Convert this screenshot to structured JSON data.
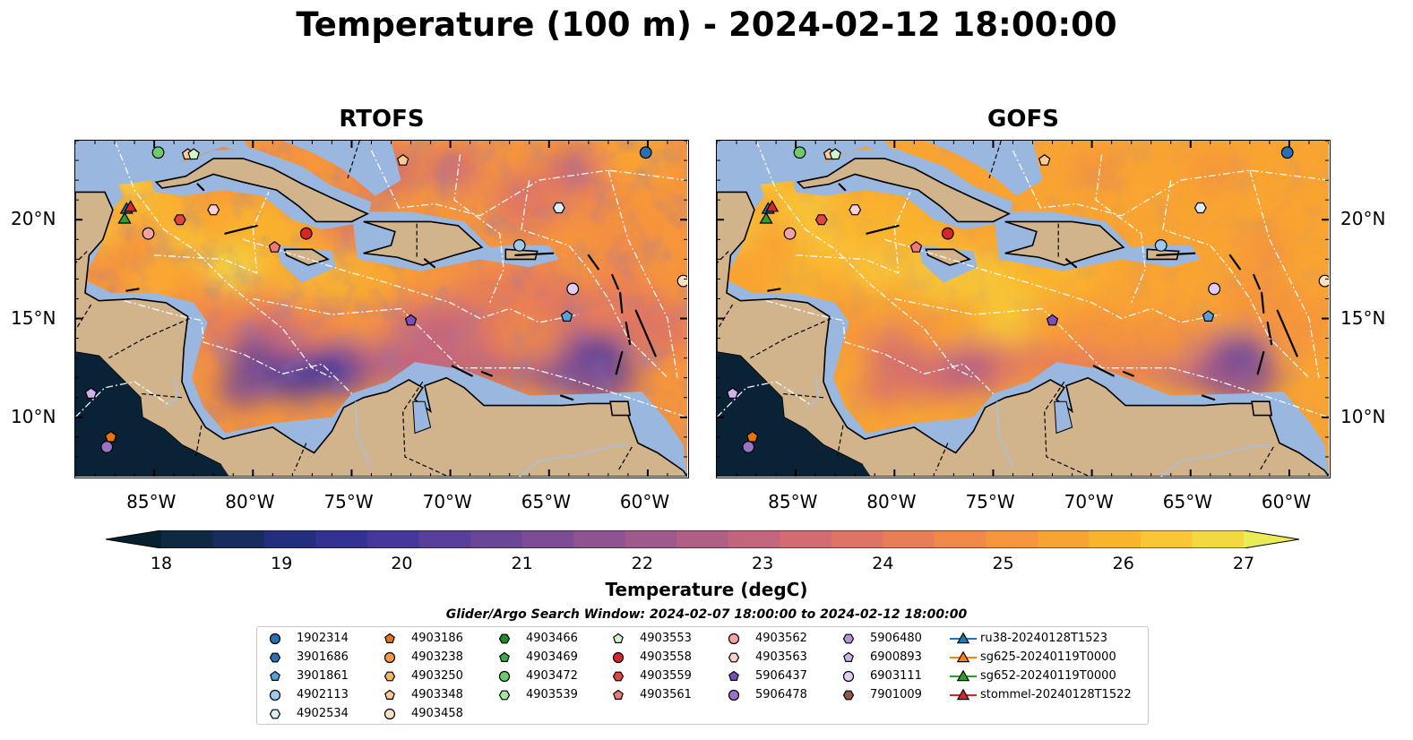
{
  "title": "Temperature (100 m) - 2024-02-12 18:00:00",
  "panels": [
    {
      "title": "RTOFS",
      "variant": "rtofs"
    },
    {
      "title": "GOFS",
      "variant": "gofs"
    }
  ],
  "axes": {
    "lon_range": [
      -89,
      -58
    ],
    "lat_range": [
      7,
      24
    ],
    "lon_ticks": [
      {
        "value": -85,
        "label": "85°W"
      },
      {
        "value": -80,
        "label": "80°W"
      },
      {
        "value": -75,
        "label": "75°W"
      },
      {
        "value": -70,
        "label": "70°W"
      },
      {
        "value": -65,
        "label": "65°W"
      },
      {
        "value": -60,
        "label": "60°W"
      }
    ],
    "lat_ticks": [
      {
        "value": 20,
        "label": "20°N"
      },
      {
        "value": 15,
        "label": "15°N"
      },
      {
        "value": 10,
        "label": "10°N"
      }
    ]
  },
  "colorbar": {
    "label": "Temperature (degC)",
    "min": 18,
    "max": 27,
    "extend": "both",
    "ticks": [
      "18",
      "19",
      "20",
      "21",
      "22",
      "23",
      "24",
      "25",
      "26",
      "27"
    ],
    "colors": [
      "#06202f",
      "#0e2a43",
      "#182d5e",
      "#232f7d",
      "#333293",
      "#46389a",
      "#583f9a",
      "#6a4697",
      "#7c4d94",
      "#8e5390",
      "#a0598b",
      "#b25f85",
      "#c3657d",
      "#d26c72",
      "#de7465",
      "#e97d57",
      "#f18849",
      "#f6953c",
      "#f9a432",
      "#fbb42e",
      "#f8c636",
      "#f2d943",
      "#e9ec54"
    ]
  },
  "map_colors": {
    "land": "#d2b48c",
    "shelf": "#9ab7e0",
    "coast": "#000000",
    "eez": "#ffffff"
  },
  "legend": {
    "title": "Glider/Argo Search Window: 2024-02-07 18:00:00 to 2024-02-12 18:00:00",
    "items": [
      {
        "label": "1902314",
        "marker": "circle",
        "color": "#2a6fb1"
      },
      {
        "label": "3901686",
        "marker": "hexagon",
        "color": "#2a6fb1"
      },
      {
        "label": "3901861",
        "marker": "pentagon",
        "color": "#5aa0d8"
      },
      {
        "label": "4902113",
        "marker": "circle",
        "color": "#9ec9ea"
      },
      {
        "label": "4902534",
        "marker": "hexagon",
        "color": "#d9eef8"
      },
      {
        "label": "4903186",
        "marker": "pentagon",
        "color": "#e8730e"
      },
      {
        "label": "4903238",
        "marker": "circle",
        "color": "#f29a44"
      },
      {
        "label": "4903250",
        "marker": "hexagon",
        "color": "#f8b466"
      },
      {
        "label": "4903348",
        "marker": "pentagon",
        "color": "#fbcb92"
      },
      {
        "label": "4903458",
        "marker": "circle",
        "color": "#fde0c2"
      },
      {
        "label": "4903466",
        "marker": "hexagon",
        "color": "#1f8a2b"
      },
      {
        "label": "4903469",
        "marker": "pentagon",
        "color": "#3daa45"
      },
      {
        "label": "4903472",
        "marker": "circle",
        "color": "#6bcc6b"
      },
      {
        "label": "4903539",
        "marker": "hexagon",
        "color": "#a6e6a0"
      },
      {
        "label": "4903553",
        "marker": "pentagon",
        "color": "#d3f5cc"
      },
      {
        "label": "4903558",
        "marker": "circle",
        "color": "#d62728"
      },
      {
        "label": "4903559",
        "marker": "hexagon",
        "color": "#e0463f"
      },
      {
        "label": "4903561",
        "marker": "pentagon",
        "color": "#f07a74"
      },
      {
        "label": "4903562",
        "marker": "circle",
        "color": "#f3a3a0"
      },
      {
        "label": "4903563",
        "marker": "hexagon",
        "color": "#fbd0cf"
      },
      {
        "label": "5906437",
        "marker": "pentagon",
        "color": "#7a4fb8"
      },
      {
        "label": "5906478",
        "marker": "circle",
        "color": "#9a72c6"
      },
      {
        "label": "5906480",
        "marker": "hexagon",
        "color": "#b794d8"
      },
      {
        "label": "6900893",
        "marker": "pentagon",
        "color": "#cdb3e8"
      },
      {
        "label": "6903111",
        "marker": "circle",
        "color": "#e2cdf5"
      },
      {
        "label": "7901009",
        "marker": "hexagon",
        "color": "#8c564b"
      },
      {
        "label": "ru38-20240128T1523",
        "marker": "triangle",
        "color": "#1f77b4"
      },
      {
        "label": "sg625-20240119T0000",
        "marker": "triangle",
        "color": "#ff7f0e"
      },
      {
        "label": "sg652-20240119T0000",
        "marker": "triangle",
        "color": "#2ca02c"
      },
      {
        "label": "stommel-20240128T1522",
        "marker": "triangle",
        "color": "#d62728"
      }
    ]
  },
  "platforms": [
    {
      "id": "1902314",
      "lon": -60.1,
      "lat": 23.4
    },
    {
      "id": "3901861",
      "lon": -64.1,
      "lat": 15.1
    },
    {
      "id": "4902113",
      "lon": -66.5,
      "lat": 18.7
    },
    {
      "id": "4902534",
      "lon": -64.5,
      "lat": 20.6
    },
    {
      "id": "4903186",
      "lon": -87.2,
      "lat": 9.0
    },
    {
      "id": "4903348",
      "lon": -83.3,
      "lat": 23.3
    },
    {
      "id": "4903458",
      "lon": -58.2,
      "lat": 16.9
    },
    {
      "id": "4903472",
      "lon": -84.8,
      "lat": 23.4
    },
    {
      "id": "4903553",
      "lon": -83.0,
      "lat": 23.3
    },
    {
      "id": "4903558",
      "lon": -77.3,
      "lat": 19.3
    },
    {
      "id": "4903559",
      "lon": -83.7,
      "lat": 20.0
    },
    {
      "id": "4903561",
      "lon": -78.9,
      "lat": 18.6
    },
    {
      "id": "4903562",
      "lon": -85.3,
      "lat": 19.3
    },
    {
      "id": "4903563",
      "lon": -82.0,
      "lat": 20.5
    },
    {
      "id": "4903348",
      "lon": -72.4,
      "lat": 23.0
    },
    {
      "id": "5906437",
      "lon": -72.0,
      "lat": 14.9
    },
    {
      "id": "5906478",
      "lon": -87.4,
      "lat": 8.5
    },
    {
      "id": "6900893",
      "lon": -88.2,
      "lat": 11.2
    },
    {
      "id": "6903111",
      "lon": -63.8,
      "lat": 16.5
    },
    {
      "id": "ru38-20240128T1523",
      "lon": -86.4,
      "lat": 20.5
    },
    {
      "id": "sg652-20240119T0000",
      "lon": -86.5,
      "lat": 20.0
    },
    {
      "id": "stommel-20240128T1522",
      "lon": -86.2,
      "lat": 20.6
    }
  ]
}
